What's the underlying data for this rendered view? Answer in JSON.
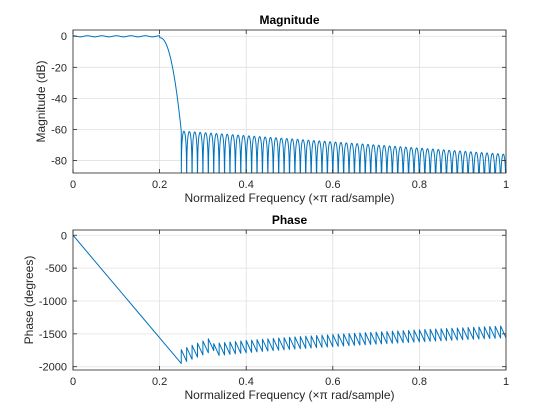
{
  "chart_data": [
    {
      "type": "line",
      "title": "Magnitude",
      "xlabel": "Normalized  Frequency    (×π  rad/sample)",
      "ylabel": "Magnitude (dB)",
      "xlim": [
        0,
        1
      ],
      "ylim": [
        -88,
        4
      ],
      "xticks": [
        0,
        0.2,
        0.4,
        0.6,
        0.8,
        1
      ],
      "xtick_labels": [
        "0",
        "0.2",
        "0.4",
        "0.6",
        "0.8",
        "1"
      ],
      "yticks": [
        0,
        -20,
        -40,
        -60,
        -80
      ],
      "ytick_labels": [
        "0",
        "-20",
        "-40",
        "-60",
        "-80"
      ],
      "grid": true,
      "color": "#0072BD",
      "passband_edge": 0.2,
      "stopband_edge": 0.25,
      "passband_ripple_db": 1,
      "stopband_level_db_start": -61,
      "stopband_level_db_end": -76,
      "stopband_lobes": 60,
      "series": [
        {
          "x": [
            0,
            0.05,
            0.1,
            0.15,
            0.2,
            0.22,
            0.24,
            0.25,
            0.3,
            0.4,
            0.5,
            0.6,
            0.7,
            0.8,
            0.9,
            1.0
          ],
          "y": [
            0,
            0,
            0,
            0,
            -1,
            -12,
            -38,
            -61,
            -62,
            -64,
            -66,
            -68,
            -70,
            -72,
            -74,
            -76
          ]
        }
      ]
    },
    {
      "type": "line",
      "title": "Phase",
      "xlabel": "Normalized  Frequency    (×π  rad/sample)",
      "ylabel": "Phase (degrees)",
      "xlim": [
        0,
        1
      ],
      "ylim": [
        -2050,
        80
      ],
      "xticks": [
        0,
        0.2,
        0.4,
        0.6,
        0.8,
        1
      ],
      "xtick_labels": [
        "0",
        "0.2",
        "0.4",
        "0.6",
        "0.8",
        "1"
      ],
      "yticks": [
        0,
        -500,
        -1000,
        -1500,
        -2000
      ],
      "ytick_labels": [
        "0",
        "-500",
        "-1000",
        "-1500",
        "-2000"
      ],
      "grid": true,
      "color": "#0072BD",
      "linear_end": [
        0.25,
        -1950
      ],
      "sawtooth_high_start": -1740,
      "sawtooth_high_end": -1380,
      "sawtooth_drop_deg": 180,
      "sawtooth_teeth": 60,
      "series": [
        {
          "x": [
            0,
            0.25,
            0.3,
            0.4,
            0.6,
            0.8,
            1.0
          ],
          "y": [
            0,
            -1950,
            -1700,
            -1550,
            -1500,
            -1450,
            -1400
          ]
        }
      ]
    }
  ]
}
